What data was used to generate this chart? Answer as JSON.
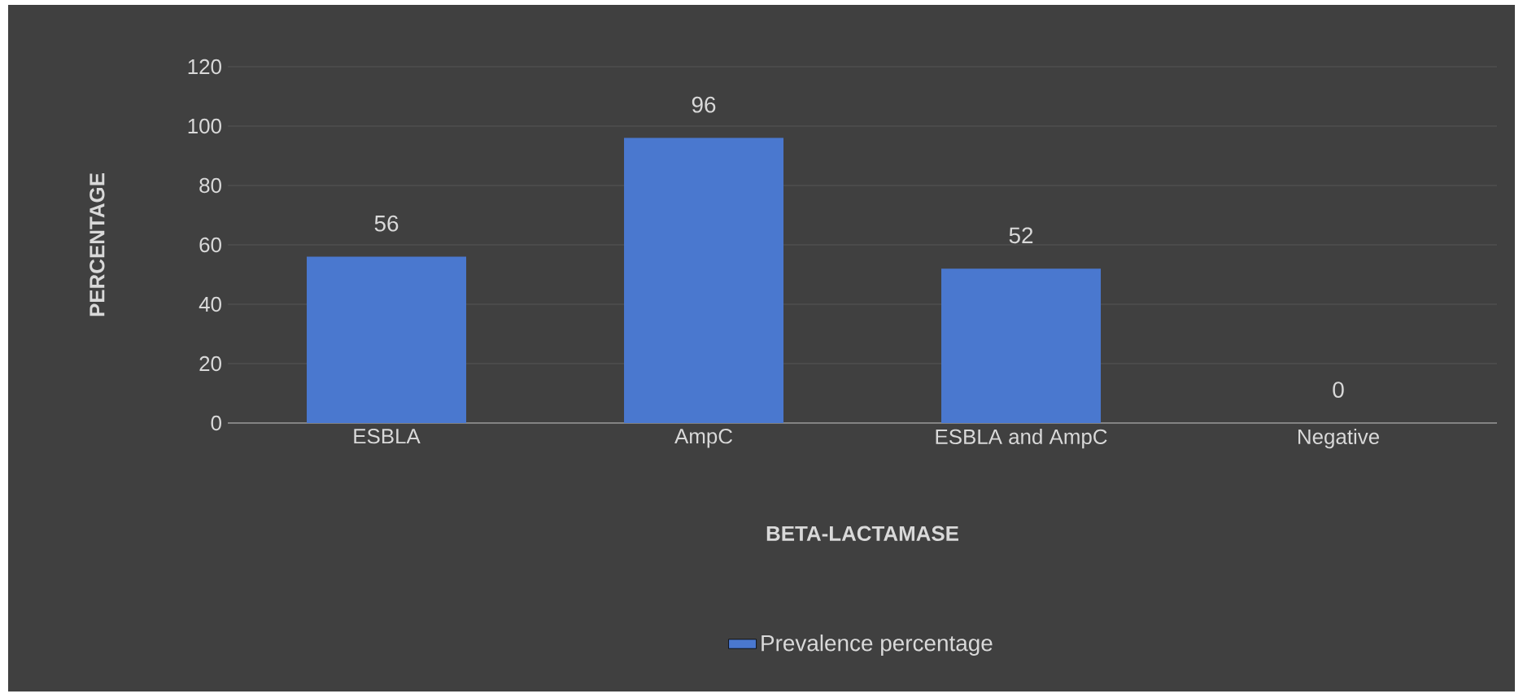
{
  "chart_data": {
    "type": "bar",
    "categories": [
      "ESBLA",
      "AmpC",
      "ESBLA and AmpC",
      "Negative"
    ],
    "xlabel": "BETA-LACTAMASE",
    "ylabel": "PERCENTAGE",
    "series": [
      {
        "name": "Prevalence percentage",
        "color": "#4a78cf",
        "values": [
          56,
          96,
          52,
          0
        ]
      }
    ],
    "ylim": [
      0,
      120
    ],
    "yticks": [
      0,
      20,
      40,
      60,
      80,
      100,
      120
    ],
    "grid": "y",
    "legend": "bottom",
    "data_labels": true
  }
}
